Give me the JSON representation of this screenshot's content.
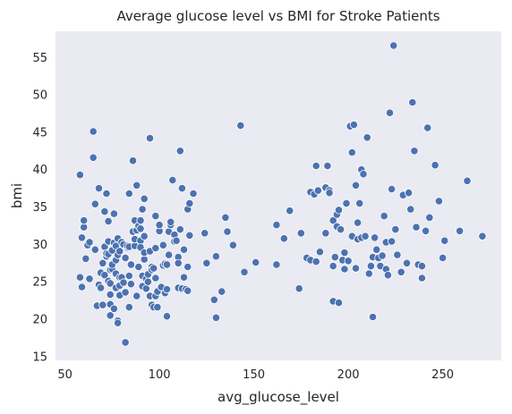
{
  "chart_data": {
    "type": "scatter",
    "title": "Average glucose level vs BMI for Stroke Patients",
    "xlabel": "avg_glucose_level",
    "ylabel": "bmi",
    "xlim": [
      45,
      281
    ],
    "ylim": [
      14.5,
      58.5
    ],
    "xticks": [
      50,
      100,
      150,
      200,
      250
    ],
    "yticks": [
      15,
      20,
      25,
      30,
      35,
      40,
      45,
      50,
      55
    ],
    "grid": false,
    "background": "#eaeaf2",
    "point_color": "#4c72b0",
    "point_edge": "#ffffff",
    "points": [
      [
        58,
        25.6
      ],
      [
        58,
        39.3
      ],
      [
        59,
        30.9
      ],
      [
        60,
        32.3
      ],
      [
        59,
        24.3
      ],
      [
        60,
        33.2
      ],
      [
        61,
        28.1
      ],
      [
        62,
        29.9
      ],
      [
        63,
        30.3
      ],
      [
        63,
        25.4
      ],
      [
        65,
        45.1
      ],
      [
        65,
        41.6
      ],
      [
        66,
        29.3
      ],
      [
        66,
        35.4
      ],
      [
        67,
        21.8
      ],
      [
        68,
        24.6
      ],
      [
        68,
        37.5
      ],
      [
        69,
        24.2
      ],
      [
        69,
        26.2
      ],
      [
        70,
        21.9
      ],
      [
        70,
        27.5
      ],
      [
        71,
        34.4
      ],
      [
        71,
        29.7
      ],
      [
        71,
        25.9
      ],
      [
        72,
        36.8
      ],
      [
        72,
        28.4
      ],
      [
        72,
        28.8
      ],
      [
        73,
        25.1
      ],
      [
        73,
        30.4
      ],
      [
        73,
        28.7
      ],
      [
        73,
        33.1
      ],
      [
        74,
        24.8
      ],
      [
        74,
        26.6
      ],
      [
        74,
        20.5
      ],
      [
        74,
        23.3
      ],
      [
        74,
        22.0
      ],
      [
        75,
        26.7
      ],
      [
        75,
        29.2
      ],
      [
        75,
        27.3
      ],
      [
        76,
        30.2
      ],
      [
        76,
        34.1
      ],
      [
        76,
        21.4
      ],
      [
        77,
        24.2
      ],
      [
        77,
        27.9
      ],
      [
        77,
        29.8
      ],
      [
        77,
        26.1
      ],
      [
        78,
        30.8
      ],
      [
        78,
        28.6
      ],
      [
        78,
        19.8
      ],
      [
        78,
        19.5
      ],
      [
        79,
        29.1
      ],
      [
        79,
        23.2
      ],
      [
        79,
        24.5
      ],
      [
        79,
        25.6
      ],
      [
        80,
        30.3
      ],
      [
        80,
        25.6
      ],
      [
        81,
        24.9
      ],
      [
        81,
        30.0
      ],
      [
        82,
        23.6
      ],
      [
        82,
        16.9
      ],
      [
        82,
        28.2
      ],
      [
        83,
        29.6
      ],
      [
        83,
        29.8
      ],
      [
        84,
        21.6
      ],
      [
        84,
        25.8
      ],
      [
        84,
        36.8
      ],
      [
        84,
        29.7
      ],
      [
        85,
        24.7
      ],
      [
        85,
        27.3
      ],
      [
        86,
        31.7
      ],
      [
        86,
        41.2
      ],
      [
        87,
        33.2
      ],
      [
        87,
        29.8
      ],
      [
        87,
        30.7
      ],
      [
        88,
        37.9
      ],
      [
        88,
        23.1
      ],
      [
        88,
        31.9
      ],
      [
        89,
        27.0
      ],
      [
        89,
        32.5
      ],
      [
        90,
        32.1
      ],
      [
        90,
        30.5
      ],
      [
        90,
        29.6
      ],
      [
        90,
        33.2
      ],
      [
        91,
        34.7
      ],
      [
        91,
        25.8
      ],
      [
        91,
        24.4
      ],
      [
        92,
        28.0
      ],
      [
        92,
        31.1
      ],
      [
        92,
        28.9
      ],
      [
        92,
        36.1
      ],
      [
        93,
        25.4
      ],
      [
        93,
        24.1
      ],
      [
        94,
        25.0
      ],
      [
        94,
        26.0
      ],
      [
        95,
        23.1
      ],
      [
        95,
        29.1
      ],
      [
        95,
        44.2
      ],
      [
        96,
        27.0
      ],
      [
        96,
        21.9
      ],
      [
        96,
        26.6
      ],
      [
        97,
        21.6
      ],
      [
        97,
        26.8
      ],
      [
        98,
        33.8
      ],
      [
        98,
        23.1
      ],
      [
        98,
        29.5
      ],
      [
        98,
        25.5
      ],
      [
        99,
        21.6
      ],
      [
        99,
        23.7
      ],
      [
        100,
        31.8
      ],
      [
        100,
        32.6
      ],
      [
        101,
        24.3
      ],
      [
        102,
        27.2
      ],
      [
        102,
        29.9
      ],
      [
        103,
        27.4
      ],
      [
        103,
        23.5
      ],
      [
        104,
        20.4
      ],
      [
        104,
        27.3
      ],
      [
        104,
        24.0
      ],
      [
        105,
        31.7
      ],
      [
        105,
        28.6
      ],
      [
        106,
        32.6
      ],
      [
        106,
        33.0
      ],
      [
        107,
        38.6
      ],
      [
        108,
        31.3
      ],
      [
        108,
        30.4
      ],
      [
        109,
        30.5
      ],
      [
        110,
        24.2
      ],
      [
        110,
        28.3
      ],
      [
        110,
        27.5
      ],
      [
        111,
        32.0
      ],
      [
        111,
        42.5
      ],
      [
        112,
        37.5
      ],
      [
        112,
        24.1
      ],
      [
        113,
        29.3
      ],
      [
        113,
        25.6
      ],
      [
        114,
        24.0
      ],
      [
        115,
        34.7
      ],
      [
        115,
        27.0
      ],
      [
        115,
        23.8
      ],
      [
        116,
        31.2
      ],
      [
        116,
        35.5
      ],
      [
        118,
        36.8
      ],
      [
        124,
        31.5
      ],
      [
        125,
        27.5
      ],
      [
        129,
        22.6
      ],
      [
        130,
        20.2
      ],
      [
        130,
        28.4
      ],
      [
        133,
        23.7
      ],
      [
        135,
        33.6
      ],
      [
        136,
        31.7
      ],
      [
        139,
        29.9
      ],
      [
        143,
        45.9
      ],
      [
        145,
        26.3
      ],
      [
        151,
        27.6
      ],
      [
        162,
        32.6
      ],
      [
        162,
        27.3
      ],
      [
        166,
        30.8
      ],
      [
        169,
        34.5
      ],
      [
        174,
        24.1
      ],
      [
        175,
        31.5
      ],
      [
        178,
        28.2
      ],
      [
        180,
        27.9
      ],
      [
        180,
        37.0
      ],
      [
        182,
        36.7
      ],
      [
        183,
        27.7
      ],
      [
        183,
        40.5
      ],
      [
        184,
        37.2
      ],
      [
        185,
        29.0
      ],
      [
        188,
        31.5
      ],
      [
        188,
        37.6
      ],
      [
        189,
        40.5
      ],
      [
        190,
        37.2
      ],
      [
        190,
        36.9
      ],
      [
        192,
        22.4
      ],
      [
        192,
        27.1
      ],
      [
        192,
        33.2
      ],
      [
        193,
        28.3
      ],
      [
        194,
        34.0
      ],
      [
        194,
        32.4
      ],
      [
        195,
        22.2
      ],
      [
        195,
        34.6
      ],
      [
        196,
        32.0
      ],
      [
        197,
        27.9
      ],
      [
        198,
        28.9
      ],
      [
        198,
        26.7
      ],
      [
        199,
        35.5
      ],
      [
        200,
        27.8
      ],
      [
        201,
        45.8
      ],
      [
        202,
        42.3
      ],
      [
        202,
        31.1
      ],
      [
        203,
        46.0
      ],
      [
        204,
        26.8
      ],
      [
        204,
        37.9
      ],
      [
        205,
        30.7
      ],
      [
        205,
        32.9
      ],
      [
        206,
        35.5
      ],
      [
        207,
        30.9
      ],
      [
        207,
        40.0
      ],
      [
        208,
        39.4
      ],
      [
        209,
        31.1
      ],
      [
        210,
        44.3
      ],
      [
        211,
        26.1
      ],
      [
        212,
        27.1
      ],
      [
        213,
        20.3
      ],
      [
        213,
        28.3
      ],
      [
        214,
        30.9
      ],
      [
        215,
        29.3
      ],
      [
        216,
        28.2
      ],
      [
        217,
        27.1
      ],
      [
        218,
        28.5
      ],
      [
        219,
        33.8
      ],
      [
        220,
        26.7
      ],
      [
        220,
        30.3
      ],
      [
        221,
        25.9
      ],
      [
        222,
        47.6
      ],
      [
        223,
        30.4
      ],
      [
        223,
        37.4
      ],
      [
        224,
        56.6
      ],
      [
        225,
        32.0
      ],
      [
        226,
        28.6
      ],
      [
        228,
        26.3
      ],
      [
        229,
        36.6
      ],
      [
        231,
        27.5
      ],
      [
        232,
        37.0
      ],
      [
        232,
        36.9
      ],
      [
        233,
        34.7
      ],
      [
        234,
        49.0
      ],
      [
        235,
        42.5
      ],
      [
        236,
        32.3
      ],
      [
        237,
        27.3
      ],
      [
        239,
        25.5
      ],
      [
        239,
        27.1
      ],
      [
        241,
        31.8
      ],
      [
        242,
        45.6
      ],
      [
        243,
        33.6
      ],
      [
        246,
        40.6
      ],
      [
        248,
        35.8
      ],
      [
        250,
        28.2
      ],
      [
        251,
        30.5
      ],
      [
        259,
        31.8
      ],
      [
        263,
        38.5
      ],
      [
        271,
        31.1
      ]
    ]
  }
}
